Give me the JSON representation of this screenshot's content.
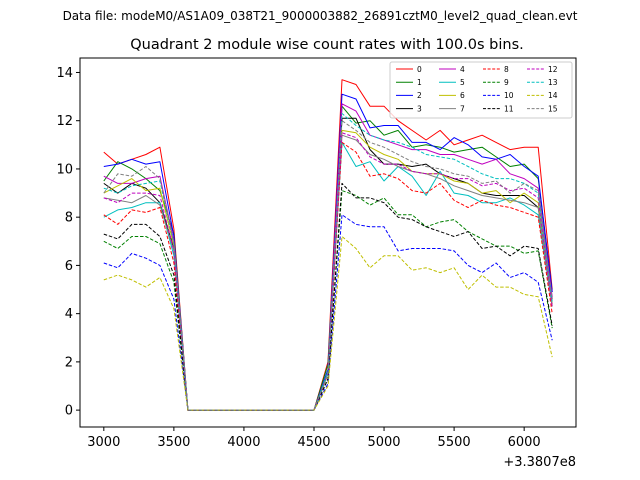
{
  "chart_data": {
    "type": "line",
    "suptitle": "Data file: modeM0/AS1A09_038T21_9000003882_26891cztM0_level2_quad_clean.evt",
    "title": "Quadrant 2 module wise count rates with 100.0s bins.",
    "offset_label": "+3.3807e8",
    "xlim": [
      2830,
      6370
    ],
    "ylim": [
      -0.7,
      14.6
    ],
    "xticks": [
      3000,
      3500,
      4000,
      4500,
      5000,
      5500,
      6000
    ],
    "yticks": [
      0,
      2,
      4,
      6,
      8,
      10,
      12,
      14
    ],
    "grid": false,
    "legend": {
      "placement": "top-right",
      "columns": 4
    },
    "x": [
      3000,
      3100,
      3200,
      3300,
      3400,
      3500,
      3600,
      3700,
      3800,
      3900,
      4000,
      4100,
      4200,
      4300,
      4400,
      4500,
      4600,
      4700,
      4800,
      4900,
      5000,
      5100,
      5200,
      5300,
      5400,
      5500,
      5600,
      5700,
      5800,
      5900,
      6000,
      6100,
      6200
    ],
    "series": [
      {
        "name": "0",
        "color": "#ff0000",
        "dashed": false,
        "values": [
          10.7,
          10.2,
          10.4,
          10.6,
          10.9,
          7.5,
          0,
          0,
          0,
          0,
          0,
          0,
          0,
          0,
          0,
          0,
          2.0,
          13.7,
          13.5,
          12.6,
          12.6,
          12.0,
          11.6,
          11.2,
          11.6,
          11.0,
          11.2,
          11.4,
          11.1,
          10.8,
          10.9,
          10.9,
          5.0
        ]
      },
      {
        "name": "1",
        "color": "#008000",
        "dashed": false,
        "values": [
          9.5,
          10.3,
          10.0,
          9.6,
          9.1,
          7.3,
          0,
          0,
          0,
          0,
          0,
          0,
          0,
          0,
          0,
          0,
          1.9,
          12.6,
          11.9,
          12.0,
          11.4,
          11.6,
          10.9,
          11.0,
          10.9,
          10.7,
          10.8,
          10.9,
          10.5,
          10.1,
          10.2,
          9.6,
          4.9
        ]
      },
      {
        "name": "2",
        "color": "#0000ff",
        "dashed": false,
        "values": [
          10.1,
          10.2,
          10.4,
          10.2,
          10.3,
          7.2,
          0,
          0,
          0,
          0,
          0,
          0,
          0,
          0,
          0,
          0,
          1.7,
          13.1,
          12.9,
          11.7,
          11.8,
          11.8,
          11.1,
          11.1,
          10.8,
          11.3,
          11.0,
          10.5,
          10.4,
          10.6,
          10.1,
          9.7,
          4.9
        ]
      },
      {
        "name": "3",
        "color": "#000000",
        "dashed": false,
        "values": [
          9.4,
          9.0,
          9.4,
          9.2,
          8.6,
          6.7,
          0,
          0,
          0,
          0,
          0,
          0,
          0,
          0,
          0,
          0,
          1.6,
          12.1,
          12.1,
          10.8,
          10.2,
          10.2,
          10.1,
          10.2,
          9.8,
          9.6,
          9.4,
          9.0,
          8.9,
          8.9,
          8.9,
          8.4,
          4.6
        ]
      },
      {
        "name": "4",
        "color": "#bf00bf",
        "dashed": false,
        "values": [
          9.7,
          9.4,
          9.4,
          9.6,
          9.7,
          7.0,
          0,
          0,
          0,
          0,
          0,
          0,
          0,
          0,
          0,
          0,
          1.6,
          12.7,
          12.4,
          11.4,
          11.2,
          11.0,
          10.8,
          10.8,
          10.6,
          10.6,
          10.4,
          10.2,
          10.4,
          9.8,
          9.6,
          9.2,
          4.7
        ]
      },
      {
        "name": "5",
        "color": "#00bfbf",
        "dashed": false,
        "values": [
          8.0,
          8.3,
          8.4,
          8.6,
          8.6,
          6.4,
          0,
          0,
          0,
          0,
          0,
          0,
          0,
          0,
          0,
          0,
          1.6,
          11.1,
          10.1,
          10.3,
          9.5,
          10.1,
          9.7,
          8.9,
          9.9,
          9.0,
          8.9,
          8.6,
          8.6,
          8.8,
          8.5,
          8.1,
          4.3
        ]
      },
      {
        "name": "6",
        "color": "#bfbf00",
        "dashed": false,
        "values": [
          9.0,
          9.3,
          9.6,
          9.1,
          9.2,
          6.8,
          0,
          0,
          0,
          0,
          0,
          0,
          0,
          0,
          0,
          0,
          1.5,
          11.6,
          11.5,
          10.9,
          10.6,
          10.4,
          9.9,
          9.8,
          9.8,
          9.5,
          9.4,
          9.0,
          9.1,
          8.6,
          9.0,
          8.6,
          4.4
        ]
      },
      {
        "name": "7",
        "color": "#808080",
        "dashed": false,
        "values": [
          8.8,
          8.7,
          8.6,
          8.9,
          8.5,
          6.6,
          0,
          0,
          0,
          0,
          0,
          0,
          0,
          0,
          0,
          0,
          1.5,
          11.4,
          11.2,
          10.6,
          10.4,
          10.1,
          9.9,
          9.8,
          9.6,
          9.3,
          9.1,
          8.9,
          8.8,
          8.7,
          8.6,
          8.4,
          4.3
        ]
      },
      {
        "name": "8",
        "color": "#ff0000",
        "dashed": true,
        "values": [
          8.1,
          7.7,
          8.3,
          8.2,
          8.4,
          6.1,
          0,
          0,
          0,
          0,
          0,
          0,
          0,
          0,
          0,
          0,
          1.5,
          11.1,
          10.7,
          9.7,
          9.8,
          9.6,
          9.1,
          9.0,
          9.4,
          8.7,
          8.4,
          8.7,
          8.5,
          8.4,
          8.2,
          8.0,
          4.0
        ]
      },
      {
        "name": "9",
        "color": "#008000",
        "dashed": true,
        "values": [
          7.0,
          6.7,
          7.2,
          7.2,
          6.9,
          5.3,
          0,
          0,
          0,
          0,
          0,
          0,
          0,
          0,
          0,
          0,
          1.3,
          9.1,
          8.9,
          8.5,
          8.8,
          8.1,
          8.1,
          7.6,
          7.8,
          7.9,
          7.4,
          7.1,
          6.8,
          6.8,
          6.5,
          6.6,
          3.4
        ]
      },
      {
        "name": "10",
        "color": "#0000ff",
        "dashed": true,
        "values": [
          6.1,
          5.9,
          6.5,
          6.3,
          6.0,
          4.6,
          0,
          0,
          0,
          0,
          0,
          0,
          0,
          0,
          0,
          0,
          1.1,
          8.1,
          7.7,
          7.6,
          7.6,
          6.6,
          6.7,
          6.7,
          6.7,
          6.6,
          6.0,
          5.7,
          6.1,
          5.5,
          5.7,
          5.3,
          2.9
        ]
      },
      {
        "name": "11",
        "color": "#000000",
        "dashed": true,
        "values": [
          7.3,
          7.1,
          7.7,
          7.7,
          7.2,
          5.6,
          0,
          0,
          0,
          0,
          0,
          0,
          0,
          0,
          0,
          0,
          1.3,
          9.4,
          8.8,
          8.8,
          8.6,
          8.0,
          7.9,
          7.6,
          7.4,
          7.2,
          7.4,
          6.7,
          6.8,
          6.4,
          6.8,
          6.7,
          3.5
        ]
      },
      {
        "name": "12",
        "color": "#bf00bf",
        "dashed": true,
        "values": [
          8.8,
          8.6,
          9.0,
          9.0,
          8.9,
          6.6,
          0,
          0,
          0,
          0,
          0,
          0,
          0,
          0,
          0,
          0,
          1.5,
          11.5,
          11.3,
          10.5,
          10.2,
          10.2,
          9.9,
          9.8,
          9.8,
          9.6,
          9.6,
          9.3,
          9.4,
          9.1,
          9.2,
          8.8,
          4.3
        ]
      },
      {
        "name": "13",
        "color": "#00bfbf",
        "dashed": true,
        "values": [
          9.2,
          9.0,
          9.3,
          9.4,
          9.5,
          6.9,
          0,
          0,
          0,
          0,
          0,
          0,
          0,
          0,
          0,
          0,
          1.5,
          12.3,
          11.8,
          11.4,
          11.2,
          11.1,
          10.9,
          10.6,
          10.5,
          10.4,
          10.1,
          9.8,
          9.6,
          9.6,
          9.4,
          9.0,
          4.5
        ]
      },
      {
        "name": "14",
        "color": "#bfbf00",
        "dashed": true,
        "values": [
          5.4,
          5.6,
          5.4,
          5.1,
          5.5,
          4.2,
          0,
          0,
          0,
          0,
          0,
          0,
          0,
          0,
          0,
          0,
          1.0,
          7.2,
          6.7,
          5.9,
          6.4,
          6.4,
          5.8,
          5.9,
          5.7,
          5.9,
          5.0,
          5.6,
          5.1,
          5.1,
          4.8,
          4.7,
          2.2
        ]
      },
      {
        "name": "15",
        "color": "#808080",
        "dashed": true,
        "values": [
          9.0,
          9.8,
          9.7,
          10.1,
          9.6,
          6.9,
          0,
          0,
          0,
          0,
          0,
          0,
          0,
          0,
          0,
          0,
          1.5,
          12.0,
          11.6,
          11.1,
          10.9,
          10.6,
          10.3,
          10.1,
          10.0,
          9.8,
          9.7,
          9.4,
          9.5,
          9.0,
          9.4,
          9.1,
          4.6
        ]
      }
    ]
  }
}
